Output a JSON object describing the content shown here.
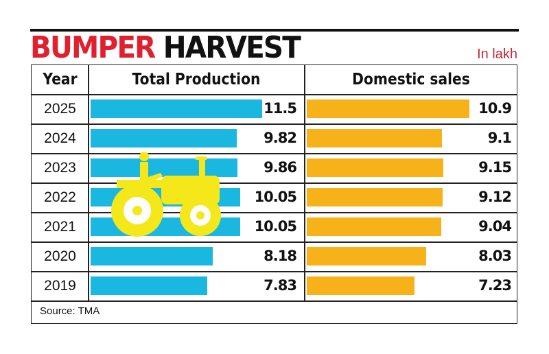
{
  "title": {
    "part1": "BUMPER",
    "part2": "HARVEST"
  },
  "unit": "In lakh",
  "source": "Source: TMA",
  "colors": {
    "title_red": "#e0202e",
    "production": "#1ab7e0",
    "domestic": "#f7b219",
    "tractor": "#f5e81a"
  },
  "chart_data": {
    "type": "bar",
    "orientation": "horizontal",
    "headers": {
      "year": "Year",
      "production": "Total Production",
      "domestic": "Domestic sales"
    },
    "categories": [
      "2025",
      "2024",
      "2023",
      "2022",
      "2021",
      "2020",
      "2019"
    ],
    "series": [
      {
        "name": "Total Production",
        "values": [
          "11.5",
          "9.82",
          "9.86",
          "10.05",
          "10.05",
          "8.18",
          "7.83"
        ]
      },
      {
        "name": "Domestic sales",
        "values": [
          "10.9",
          "9.1",
          "9.15",
          "9.12",
          "9.04",
          "8.03",
          "7.23"
        ]
      }
    ],
    "unit": "In lakh",
    "decoration": "tractor-icon"
  }
}
